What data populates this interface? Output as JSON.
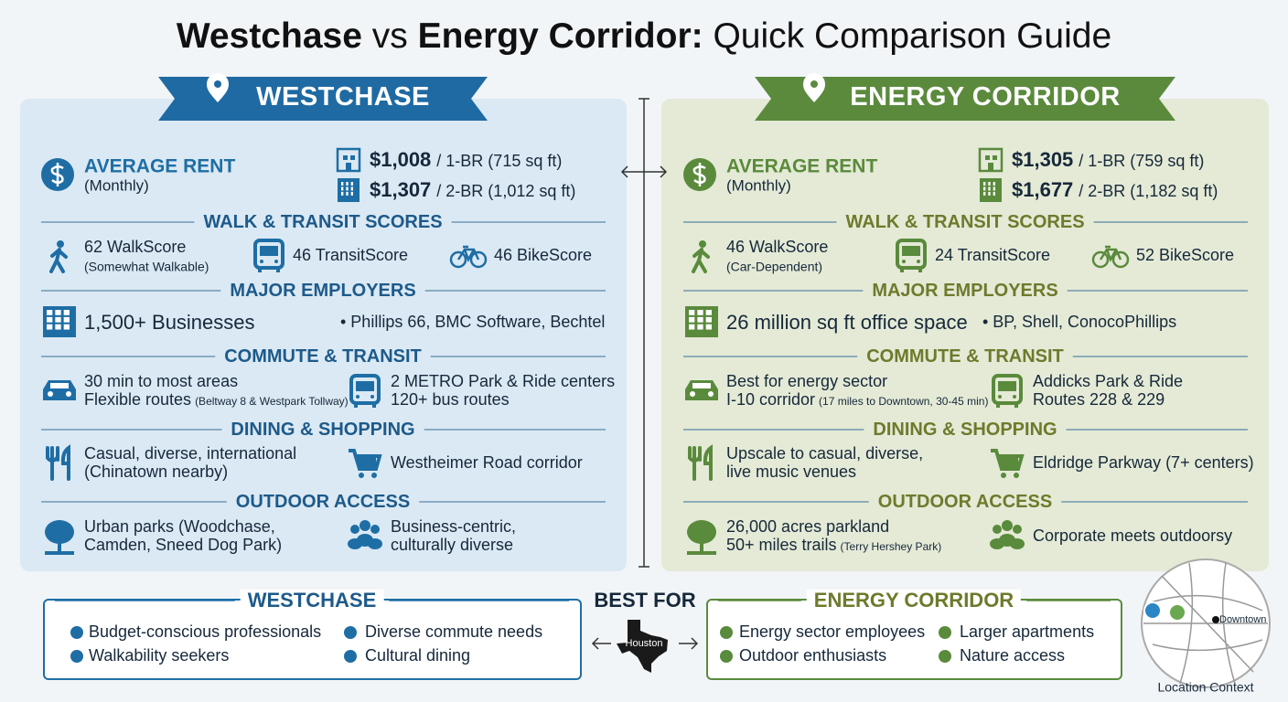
{
  "title": {
    "part1": "Westchase",
    "part2": "vs",
    "part3": "Energy Corridor:",
    "part4": "Quick Comparison Guide"
  },
  "panels": [
    {
      "name": "WESTCHASE",
      "rent": {
        "label": "AVERAGE RENT",
        "period": "(Monthly)",
        "units": [
          {
            "price": "$1,008",
            "detail": "/ 1-BR (715 sq ft)"
          },
          {
            "price": "$1,307",
            "detail": "/ 2-BR (1,012 sq ft)"
          }
        ]
      },
      "scores": {
        "heading": "WALK & TRANSIT SCORES",
        "walk": "62 WalkScore",
        "walk_note": "(Somewhat Walkable)",
        "transit": "46 TransitScore",
        "bike": "46 BikeScore"
      },
      "employers": {
        "heading": "MAJOR EMPLOYERS",
        "summary": "1,500+ Businesses",
        "names": "• Phillips 66, BMC Software, Bechtel"
      },
      "commute": {
        "heading": "COMMUTE & TRANSIT",
        "left": [
          {
            "text": "30 min to most areas"
          },
          {
            "text": "Flexible routes",
            "note": "(Beltway 8 & Westpark Tollway)"
          }
        ],
        "right": [
          {
            "text": "2 METRO Park & Ride centers"
          },
          {
            "text": "120+ bus routes"
          }
        ]
      },
      "dining": {
        "heading": "DINING & SHOPPING",
        "left": [
          {
            "text": "Casual, diverse, international"
          },
          {
            "text": "(Chinatown nearby)"
          }
        ],
        "right": [
          {
            "text": "Westheimer Road corridor"
          }
        ]
      },
      "outdoor": {
        "heading": "OUTDOOR ACCESS",
        "left": [
          {
            "text": "Urban parks (Woodchase,"
          },
          {
            "text": "Camden, Sneed Dog Park)"
          }
        ],
        "right": [
          {
            "text": "Business-centric,"
          },
          {
            "text": "culturally diverse"
          }
        ]
      }
    },
    {
      "name": "ENERGY CORRIDOR",
      "rent": {
        "label": "AVERAGE RENT",
        "period": "(Monthly)",
        "units": [
          {
            "price": "$1,305",
            "detail": "/ 1-BR (759 sq ft)"
          },
          {
            "price": "$1,677",
            "detail": "/ 2-BR (1,182 sq ft)"
          }
        ]
      },
      "scores": {
        "heading": "WALK & TRANSIT SCORES",
        "walk": "46 WalkScore",
        "walk_note": "(Car-Dependent)",
        "transit": "24 TransitScore",
        "bike": "52 BikeScore"
      },
      "employers": {
        "heading": "MAJOR EMPLOYERS",
        "summary": "26 million sq ft office space",
        "names": "• BP, Shell, ConocoPhillips"
      },
      "commute": {
        "heading": "COMMUTE & TRANSIT",
        "left": [
          {
            "text": "Best for energy sector"
          },
          {
            "text": "I-10 corridor",
            "note": "(17 miles to Downtown, 30-45 min)"
          }
        ],
        "right": [
          {
            "text": "Addicks Park & Ride"
          },
          {
            "text": "Routes 228 & 229"
          }
        ]
      },
      "dining": {
        "heading": "DINING & SHOPPING",
        "left": [
          {
            "text": "Upscale to casual, diverse,"
          },
          {
            "text": "live music venues"
          }
        ],
        "right": [
          {
            "text": "Eldridge Parkway (7+ centers)"
          }
        ]
      },
      "outdoor": {
        "heading": "OUTDOOR ACCESS",
        "left": [
          {
            "text": "26,000 acres parkland"
          },
          {
            "text": "50+ miles trails",
            "note": "(Terry Hershey Park)"
          }
        ],
        "right": [
          {
            "text": "Corporate meets outdoorsy"
          }
        ]
      }
    }
  ],
  "best_for": {
    "label": "BEST FOR",
    "city": "Houston",
    "groups": [
      {
        "name": "WESTCHASE",
        "items": [
          "Budget-conscious professionals",
          "Diverse commute needs",
          "Walkability seekers",
          "Cultural dining"
        ]
      },
      {
        "name": "ENERGY CORRIDOR",
        "items": [
          "Energy sector employees",
          "Larger apartments",
          "Outdoor enthusiasts",
          "Nature access"
        ]
      }
    ]
  },
  "map": {
    "landmark": "Downtown",
    "caption": "Location Context"
  }
}
